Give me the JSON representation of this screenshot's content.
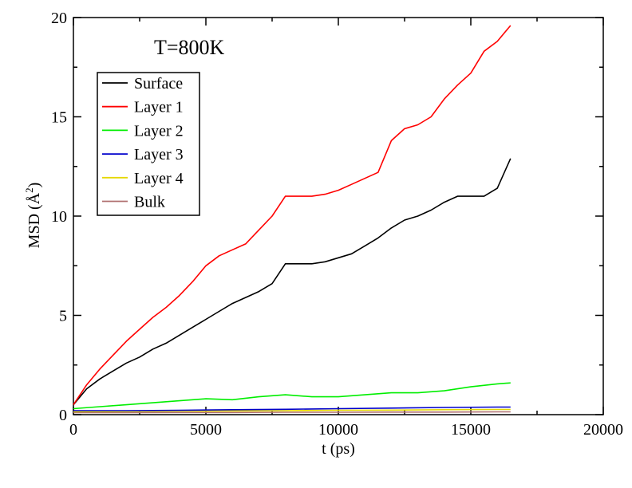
{
  "chart_data": {
    "type": "line",
    "annotation": "T=800K",
    "xlabel": "t (ps)",
    "ylabel": "MSD (Å²)",
    "xlim": [
      0,
      20000
    ],
    "ylim": [
      0,
      20
    ],
    "xticks": [
      0,
      5000,
      10000,
      15000,
      20000
    ],
    "xtick_labels": [
      "0",
      "5000",
      "10000",
      "15000",
      "20000"
    ],
    "yticks": [
      0,
      5,
      10,
      15,
      20
    ],
    "ytick_labels": [
      "0",
      "5",
      "10",
      "15",
      "20"
    ],
    "grid": false,
    "legend_position": "top-left",
    "series": [
      {
        "name": "Surface",
        "color": "#000000",
        "x": [
          0,
          500,
          1000,
          1500,
          2000,
          2500,
          3000,
          3500,
          4000,
          4500,
          5000,
          5500,
          6000,
          6500,
          7000,
          7500,
          8000,
          8500,
          9000,
          9500,
          10000,
          10500,
          11000,
          11500,
          12000,
          12500,
          13000,
          13500,
          14000,
          14500,
          15000,
          15500,
          16000,
          16500
        ],
        "y": [
          0.5,
          1.3,
          1.8,
          2.2,
          2.6,
          2.9,
          3.3,
          3.6,
          4.0,
          4.4,
          4.8,
          5.2,
          5.6,
          5.9,
          6.2,
          6.6,
          7.6,
          7.6,
          7.6,
          7.7,
          7.9,
          8.1,
          8.5,
          8.9,
          9.4,
          9.8,
          10.0,
          10.3,
          10.7,
          11.0,
          11.0,
          11.0,
          11.4,
          12.9
        ]
      },
      {
        "name": "Layer 1",
        "color": "#ff0000",
        "x": [
          0,
          500,
          1000,
          1500,
          2000,
          2500,
          3000,
          3500,
          4000,
          4500,
          5000,
          5500,
          6000,
          6500,
          7000,
          7500,
          8000,
          8500,
          9000,
          9500,
          10000,
          10500,
          11000,
          11500,
          12000,
          12500,
          13000,
          13500,
          14000,
          14500,
          15000,
          15500,
          16000,
          16500
        ],
        "y": [
          0.5,
          1.5,
          2.3,
          3.0,
          3.7,
          4.3,
          4.9,
          5.4,
          6.0,
          6.7,
          7.5,
          8.0,
          8.3,
          8.6,
          9.3,
          10.0,
          11.0,
          11.0,
          11.0,
          11.1,
          11.3,
          11.6,
          11.9,
          12.2,
          13.8,
          14.4,
          14.6,
          15.0,
          15.9,
          16.6,
          17.2,
          18.3,
          18.8,
          19.6
        ]
      },
      {
        "name": "Layer 2",
        "color": "#00ee00",
        "x": [
          0,
          1000,
          2000,
          3000,
          4000,
          5000,
          6000,
          7000,
          8000,
          9000,
          10000,
          11000,
          12000,
          13000,
          14000,
          15000,
          16000,
          16500
        ],
        "y": [
          0.3,
          0.4,
          0.5,
          0.6,
          0.7,
          0.8,
          0.75,
          0.9,
          1.0,
          0.9,
          0.9,
          1.0,
          1.1,
          1.1,
          1.2,
          1.4,
          1.55,
          1.6
        ]
      },
      {
        "name": "Layer 3",
        "color": "#0000cc",
        "x": [
          0,
          2000,
          4000,
          6000,
          8000,
          10000,
          12000,
          14000,
          16000,
          16500
        ],
        "y": [
          0.2,
          0.2,
          0.22,
          0.25,
          0.27,
          0.3,
          0.33,
          0.36,
          0.38,
          0.38
        ]
      },
      {
        "name": "Layer 4",
        "color": "#e6d800",
        "x": [
          0,
          2000,
          4000,
          6000,
          8000,
          10000,
          12000,
          14000,
          16000,
          16500
        ],
        "y": [
          0.15,
          0.16,
          0.18,
          0.19,
          0.2,
          0.22,
          0.23,
          0.25,
          0.26,
          0.26
        ]
      },
      {
        "name": "Bulk",
        "color": "#b07070",
        "x": [
          0,
          2000,
          4000,
          6000,
          8000,
          10000,
          12000,
          14000,
          16000,
          16500
        ],
        "y": [
          0.1,
          0.1,
          0.11,
          0.11,
          0.12,
          0.12,
          0.13,
          0.13,
          0.14,
          0.14
        ]
      }
    ]
  }
}
